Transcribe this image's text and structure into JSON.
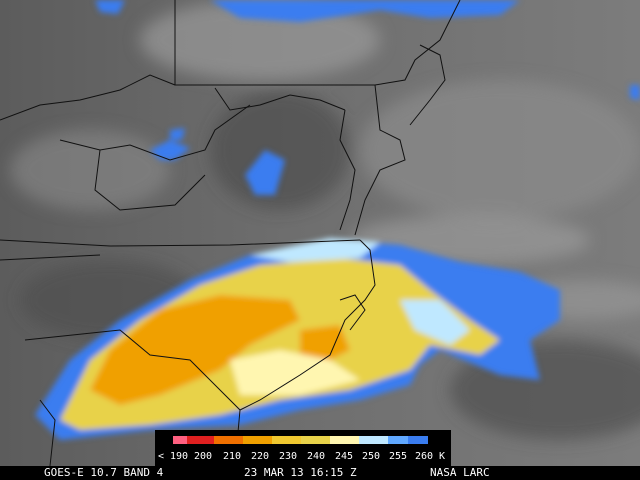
{
  "colorbar": {
    "labels": [
      "< 190",
      "200",
      "210",
      "220",
      "230",
      "240",
      "245",
      "250",
      "255",
      "260 K"
    ]
  },
  "footer": {
    "satellite": "GOES-E 10.7 BAND 4",
    "timestamp": "23 MAR 13 16:15 Z",
    "source": "NASA LARC"
  }
}
